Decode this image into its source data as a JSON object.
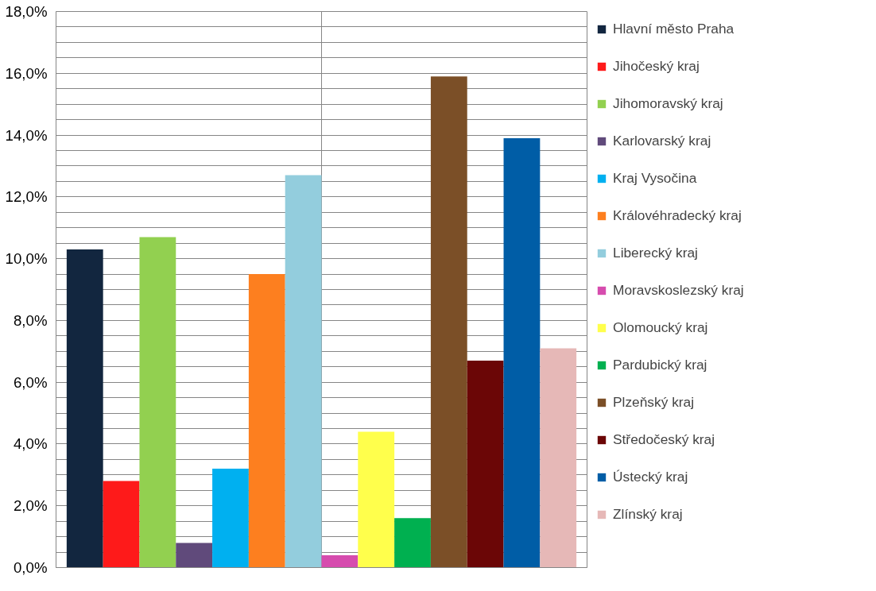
{
  "chart_data": {
    "type": "bar",
    "categories": [
      null
    ],
    "series": [
      {
        "name": "Hlavní město Praha",
        "color": "#12263f",
        "values": [
          10.3
        ]
      },
      {
        "name": "Jihočeský kraj",
        "color": "#fe1a1a",
        "values": [
          2.8
        ]
      },
      {
        "name": "Jihomoravský kraj",
        "color": "#92d050",
        "values": [
          10.7
        ]
      },
      {
        "name": "Karlovarský kraj",
        "color": "#604a7b",
        "values": [
          0.8
        ]
      },
      {
        "name": "Kraj Vysočina",
        "color": "#00b0f0",
        "values": [
          3.2
        ]
      },
      {
        "name": "Královéhradecký kraj",
        "color": "#fd7f1f",
        "values": [
          9.5
        ]
      },
      {
        "name": "Liberecký kraj",
        "color": "#93cddd",
        "values": [
          12.7
        ]
      },
      {
        "name": "Moravskoslezský kraj",
        "color": "#d64cae",
        "values": [
          0.4
        ]
      },
      {
        "name": "Olomoucký kraj",
        "color": "#ffff4c",
        "values": [
          4.4
        ]
      },
      {
        "name": "Pardubický kraj",
        "color": "#00b050",
        "values": [
          1.6
        ]
      },
      {
        "name": "Plzeňský kraj",
        "color": "#7b4f27",
        "values": [
          15.9
        ]
      },
      {
        "name": "Středočeský kraj",
        "color": "#6b0606",
        "values": [
          6.7
        ]
      },
      {
        "name": "Ústecký kraj",
        "color": "#005da6",
        "values": [
          13.9
        ]
      },
      {
        "name": "Zlínský kraj",
        "color": "#e6b8b7",
        "values": [
          7.1
        ]
      }
    ],
    "ylim": [
      0,
      18
    ],
    "yticks": [
      {
        "value": 0,
        "label": "0,0%"
      },
      {
        "value": 0.5,
        "label": null
      },
      {
        "value": 1,
        "label": null
      },
      {
        "value": 1.5,
        "label": null
      },
      {
        "value": 2,
        "label": "2,0%"
      },
      {
        "value": 2.5,
        "label": null
      },
      {
        "value": 3,
        "label": null
      },
      {
        "value": 3.5,
        "label": null
      },
      {
        "value": 4,
        "label": "4,0%"
      },
      {
        "value": 4.5,
        "label": null
      },
      {
        "value": 5,
        "label": null
      },
      {
        "value": 5.5,
        "label": null
      },
      {
        "value": 6,
        "label": "6,0%"
      },
      {
        "value": 6.5,
        "label": null
      },
      {
        "value": 7,
        "label": null
      },
      {
        "value": 7.5,
        "label": null
      },
      {
        "value": 8,
        "label": "8,0%"
      },
      {
        "value": 8.5,
        "label": null
      },
      {
        "value": 9,
        "label": null
      },
      {
        "value": 9.5,
        "label": null
      },
      {
        "value": 10,
        "label": "10,0%"
      },
      {
        "value": 10.5,
        "label": null
      },
      {
        "value": 11,
        "label": null
      },
      {
        "value": 11.5,
        "label": null
      },
      {
        "value": 12,
        "label": "12,0%"
      },
      {
        "value": 12.5,
        "label": null
      },
      {
        "value": 13,
        "label": null
      },
      {
        "value": 13.5,
        "label": null
      },
      {
        "value": 14,
        "label": "14,0%"
      },
      {
        "value": 14.5,
        "label": null
      },
      {
        "value": 15,
        "label": null
      },
      {
        "value": 15.5,
        "label": null
      },
      {
        "value": 16,
        "label": "16,0%"
      },
      {
        "value": 16.5,
        "label": null
      },
      {
        "value": 17,
        "label": null
      },
      {
        "value": 17.5,
        "label": null
      },
      {
        "value": 18,
        "label": "18,0%"
      }
    ],
    "grid": true,
    "legend": "right"
  }
}
